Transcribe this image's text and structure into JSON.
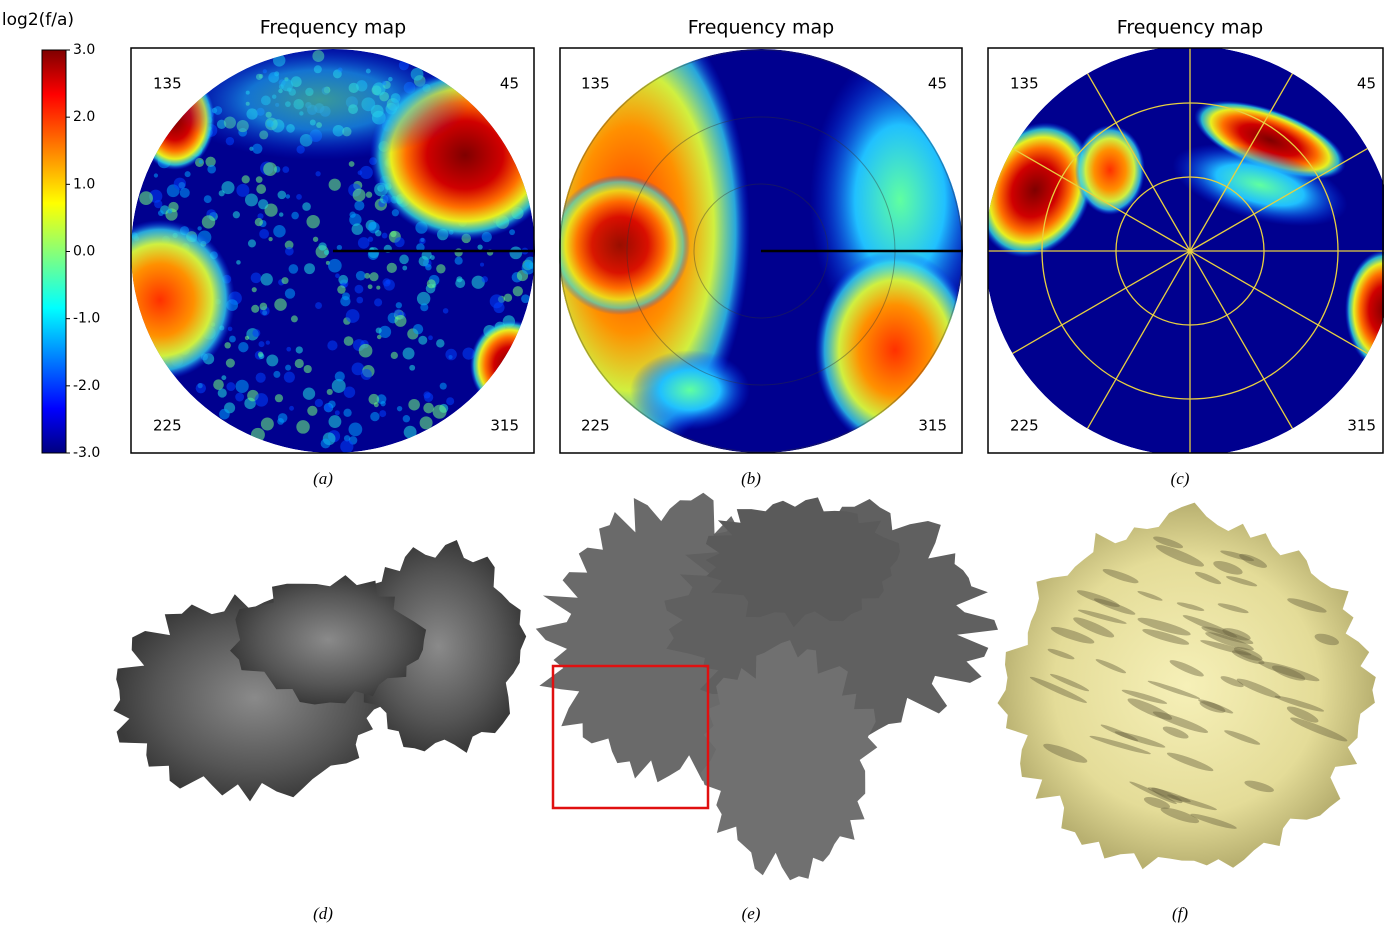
{
  "colorbar": {
    "title": "log2(f/a)",
    "lim": [
      -3,
      3
    ],
    "ticks": [
      {
        "value": 3,
        "label": "3.0"
      },
      {
        "value": 2,
        "label": "2.0"
      },
      {
        "value": 1,
        "label": "1.0"
      },
      {
        "value": 0,
        "label": "0.0"
      },
      {
        "value": -1,
        "label": "-1.0"
      },
      {
        "value": -2,
        "label": "-2.0"
      },
      {
        "value": -3,
        "label": "-3.0"
      }
    ]
  },
  "panels": [
    {
      "title": "Frequency map",
      "angle_labels": [
        135,
        45,
        225,
        315
      ],
      "caption": "(a)"
    },
    {
      "title": "Frequency map",
      "angle_labels": [
        135,
        45,
        225,
        315
      ],
      "caption": "(b)"
    },
    {
      "title": "Frequency map",
      "angle_labels": [
        135,
        45,
        225,
        315
      ],
      "caption": "(c)"
    }
  ],
  "bottom_panels": [
    {
      "caption": "(d)"
    },
    {
      "caption": "(e)"
    },
    {
      "caption": "(f)"
    }
  ]
}
